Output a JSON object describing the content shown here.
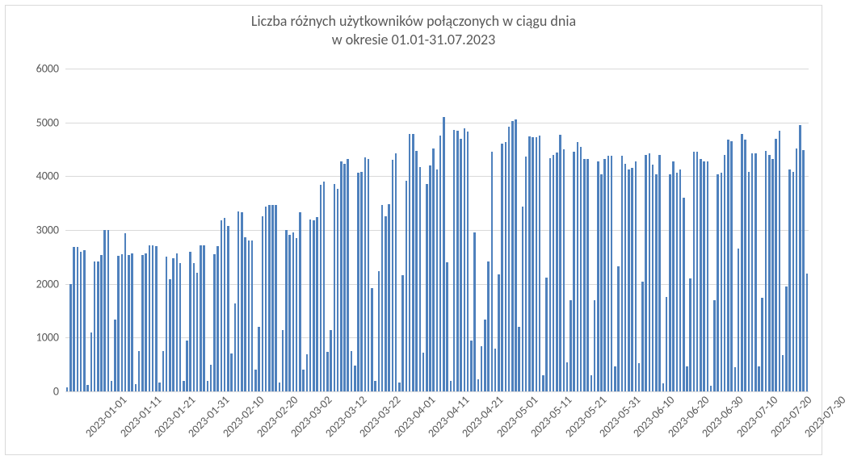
{
  "chart": {
    "type": "bar",
    "title_line1": "Liczba różnych użytkowników połączonych w ciągu dnia",
    "title_line2": "w okresie 01.01-31.07.2023",
    "title_color": "#595959",
    "title_fontsize": 18,
    "axis_label_color": "#595959",
    "axis_label_fontsize": 14,
    "background_color": "#ffffff",
    "grid_color": "#d9d9d9",
    "border_color": "#d9d9d9",
    "bar_color": "#4f81bd",
    "bar_gap_ratio": 0.4,
    "ylim": [
      0,
      6000
    ],
    "ytick_step": 1000,
    "yticks": [
      "0",
      "1000",
      "2000",
      "3000",
      "4000",
      "5000",
      "6000"
    ],
    "x_labels": [
      "2023-01-01",
      "2023-01-11",
      "2023-01-21",
      "2023-01-31",
      "2023-02-10",
      "2023-02-20",
      "2023-03-02",
      "2023-03-12",
      "2023-03-22",
      "2023-04-01",
      "2023-04-11",
      "2023-04-21",
      "2023-05-01",
      "2023-05-11",
      "2023-05-21",
      "2023-05-31",
      "2023-06-10",
      "2023-06-20",
      "2023-06-30",
      "2023-07-10",
      "2023-07-20",
      "2023-07-30"
    ],
    "x_label_every": 10,
    "x_label_rotation_deg": 45,
    "values": [
      80,
      2000,
      2680,
      2680,
      2600,
      2620,
      120,
      1100,
      2420,
      2420,
      2540,
      3000,
      3000,
      200,
      1330,
      2520,
      2550,
      2940,
      2530,
      2560,
      140,
      750,
      2530,
      2560,
      2720,
      2720,
      2700,
      170,
      750,
      2510,
      2080,
      2480,
      2560,
      2380,
      200,
      950,
      2600,
      2380,
      2200,
      2710,
      2720,
      200,
      500,
      2550,
      2700,
      3180,
      3220,
      3070,
      700,
      1630,
      3350,
      3330,
      2870,
      2800,
      2800,
      400,
      1200,
      3260,
      3430,
      3460,
      3470,
      3470,
      170,
      1140,
      3000,
      2910,
      2960,
      2850,
      3330,
      400,
      690,
      3190,
      3180,
      3240,
      3840,
      3900,
      740,
      1140,
      3850,
      3770,
      4280,
      4230,
      4320,
      750,
      480,
      4070,
      4080,
      4350,
      4320,
      1920,
      200,
      2240,
      3470,
      3250,
      3480,
      4300,
      4420,
      170,
      2160,
      3910,
      4790,
      4790,
      4470,
      4170,
      720,
      3860,
      4200,
      4520,
      4120,
      4760,
      5100,
      2400,
      200,
      4860,
      4850,
      4700,
      4890,
      4830,
      950,
      2950,
      230,
      840,
      1340,
      2420,
      4460,
      800,
      2180,
      4610,
      4640,
      4920,
      5020,
      5050,
      1200,
      3440,
      4360,
      4740,
      4730,
      4720,
      4760,
      300,
      2120,
      4330,
      4400,
      4440,
      4770,
      4500,
      540,
      1700,
      4450,
      4630,
      4550,
      4320,
      4320,
      300,
      1700,
      4280,
      4030,
      4320,
      4380,
      4380,
      460,
      2320,
      4380,
      4230,
      4120,
      4160,
      4270,
      530,
      2040,
      4400,
      4420,
      4220,
      4040,
      4400,
      150,
      1750,
      4030,
      4270,
      4070,
      4130,
      3600,
      470,
      2100,
      4450,
      4450,
      4320,
      4280,
      4280,
      100,
      1700,
      4030,
      4060,
      4400,
      4680,
      4650,
      450,
      2660,
      4780,
      4680,
      4080,
      4430,
      4430,
      460,
      1740,
      4470,
      4400,
      4320,
      4700,
      4840,
      670,
      1950,
      4120,
      4080,
      4520,
      4950,
      4480,
      2190
    ]
  }
}
